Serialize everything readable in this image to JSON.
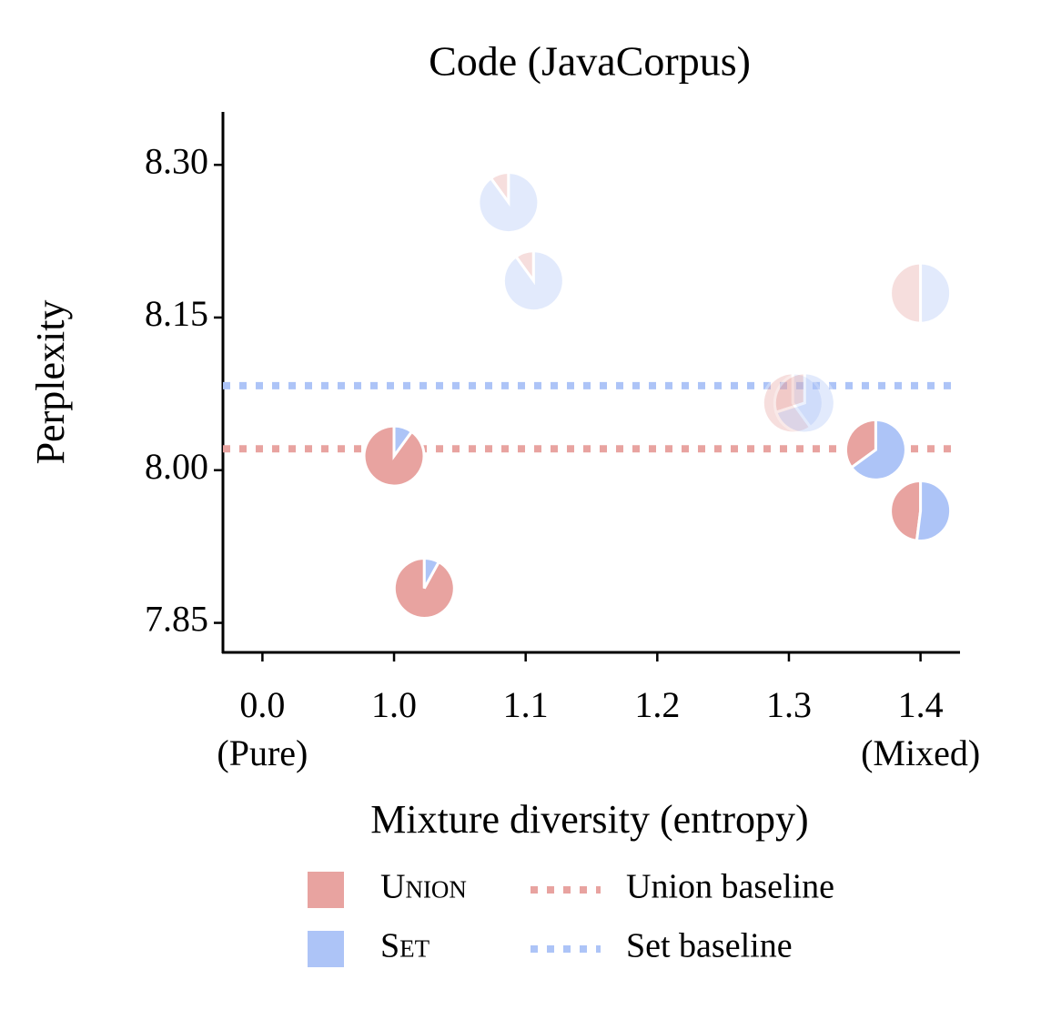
{
  "chart_data": {
    "type": "pie-scatter",
    "title": "Code (JavaCorpus)",
    "xlabel": "Mixture diversity (entropy)",
    "ylabel": "Perplexity",
    "x": [
      1.0,
      1.023,
      1.087,
      1.106,
      1.4,
      1.303,
      1.312,
      1.366,
      1.4
    ],
    "y": [
      8.014,
      7.884,
      8.263,
      8.186,
      8.174,
      8.066,
      8.066,
      8.02,
      7.96
    ],
    "opacity": [
      1,
      1,
      0.35,
      0.35,
      0.35,
      0.35,
      0.35,
      1,
      1
    ],
    "series": [
      {
        "name": "Union",
        "color": "#e8a3a0",
        "values": [
          0.9,
          0.92,
          0.1,
          0.1,
          0.5,
          0.6,
          0.3,
          0.35,
          0.48
        ]
      },
      {
        "name": "Set",
        "color": "#adc4f7",
        "values": [
          0.1,
          0.08,
          0.9,
          0.9,
          0.5,
          0.4,
          0.7,
          0.65,
          0.52
        ]
      }
    ],
    "baselines": [
      {
        "name": "Union baseline",
        "color": "#e8a3a0",
        "value": 8.021
      },
      {
        "name": "Set baseline",
        "color": "#adc4f7",
        "value": 8.083
      }
    ],
    "xscale": "broken",
    "xlim": [
      -0.3,
      1.43
    ],
    "xticks": [
      {
        "value": 0,
        "label": "0.0"
      },
      {
        "value": 1,
        "label": "1.0"
      },
      1.1,
      1.2,
      1.3,
      1.4
    ],
    "annotations": [
      {
        "text": "(Pure)",
        "x": 0
      },
      {
        "text": "(Mixed)",
        "x": 1.4
      }
    ],
    "ylim": [
      7.821,
      8.352
    ],
    "yticks": [
      {
        "value": 7.85,
        "label": "7.85"
      },
      {
        "value": 8,
        "label": "8.00"
      },
      8.15,
      {
        "value": 8.3,
        "label": "8.30"
      }
    ],
    "grid": false
  }
}
